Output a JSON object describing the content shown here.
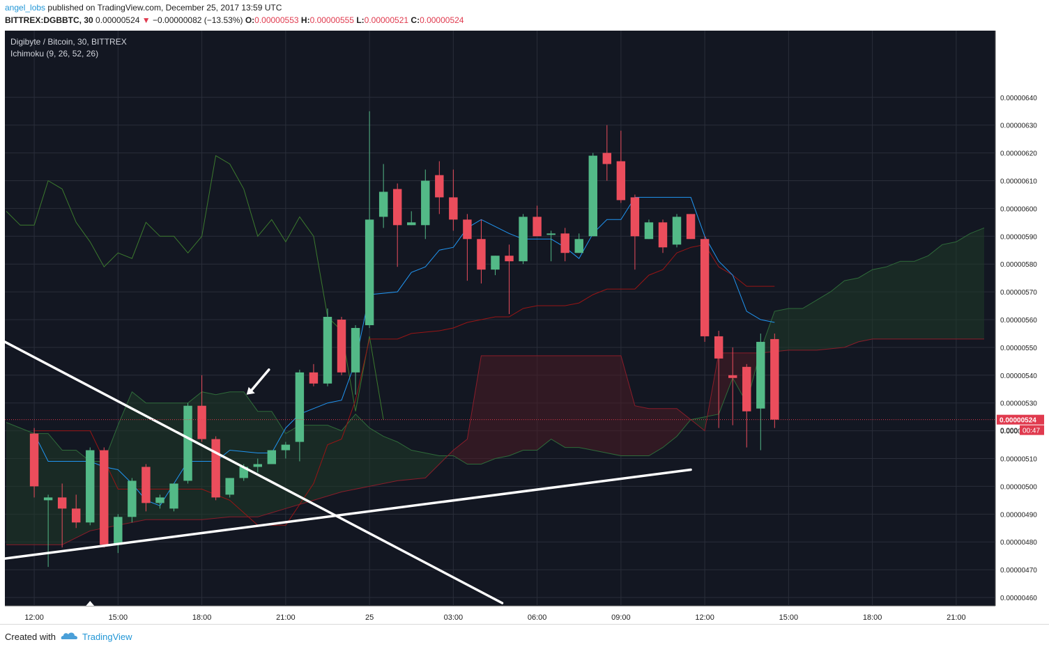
{
  "header": {
    "author": "angel_lobs",
    "published_text": " published on TradingView.com, December 25, 2017 13:59 UTC",
    "symbol": "BITTREX:DGBBTC, 30",
    "last_price": "0.00000524",
    "change_arrow": "▼",
    "change": "−0.00000082 (−13.53%)",
    "o_label": "O:",
    "o_value": "0.00000553",
    "h_label": "H:",
    "h_value": "0.00000555",
    "l_label": "L:",
    "l_value": "0.00000521",
    "c_label": "C:",
    "c_value": "0.00000524"
  },
  "legend": {
    "title": "Digibyte / Bitcoin, 30, BITTREX",
    "indicator": "Ichimoku (9, 26, 52, 26)"
  },
  "footer": {
    "created_with": "Created with",
    "brand": "TradingView"
  },
  "colors": {
    "background": "#131722",
    "grid": "#2a2e3a",
    "up": "#53b987",
    "down": "#eb4d5c",
    "conversion_line": "#2196f3",
    "base_line": "#991515",
    "lagging_span": "#3c7a2e",
    "cloud_bull": "#1f3a28",
    "cloud_bear": "#4a1c24",
    "price_line": "#e03a4e",
    "trendline": "#ffffff",
    "axis_text": "#1c1c1c"
  },
  "chart_data": {
    "type": "candlestick",
    "title": "Digibyte / Bitcoin, 30, BITTREX",
    "indicator": "Ichimoku (9, 26, 52, 26)",
    "y_range": [
      4.57e-06,
      6.64e-06
    ],
    "y_ticks": [
      4.6e-06,
      4.7e-06,
      4.8e-06,
      4.9e-06,
      5e-06,
      5.1e-06,
      5.2e-06,
      5.3e-06,
      5.4e-06,
      5.5e-06,
      5.6e-06,
      5.7e-06,
      5.8e-06,
      5.9e-06,
      6e-06,
      6.1e-06,
      6.2e-06,
      6.3e-06,
      6.4e-06
    ],
    "y_tick_labels": [
      "0.00000460",
      "0.00000470",
      "0.00000480",
      "0.00000490",
      "0.00000500",
      "0.00000510",
      "0.00000520",
      "0.00000530",
      "0.00000540",
      "0.00000550",
      "0.00000560",
      "0.00000570",
      "0.00000580",
      "0.00000590",
      "0.00000600",
      "0.00000610",
      "0.00000620",
      "0.00000630",
      "0.00000640"
    ],
    "x_range": [
      -2.1,
      68.8
    ],
    "x_ticks": [
      {
        "i": 0,
        "label": "12:00"
      },
      {
        "i": 6,
        "label": "15:00"
      },
      {
        "i": 12,
        "label": "18:00"
      },
      {
        "i": 18,
        "label": "21:00"
      },
      {
        "i": 24,
        "label": "25"
      },
      {
        "i": 30,
        "label": "03:00"
      },
      {
        "i": 36,
        "label": "06:00"
      },
      {
        "i": 42,
        "label": "09:00"
      },
      {
        "i": 48,
        "label": "12:00"
      },
      {
        "i": 54,
        "label": "15:00"
      },
      {
        "i": 60,
        "label": "18:00"
      },
      {
        "i": 66,
        "label": "21:00"
      }
    ],
    "current_price": 5.24e-06,
    "current_price_label": "0.00000524",
    "countdown": "00:47",
    "price_axis_cut_label": "0.000",
    "candles": [
      [
        5.19e-06,
        5.21e-06,
        4.96e-06,
        5e-06
      ],
      [
        4.95e-06,
        4.97e-06,
        4.71e-06,
        4.96e-06
      ],
      [
        4.96e-06,
        5.01e-06,
        4.78e-06,
        4.92e-06
      ],
      [
        4.92e-06,
        4.97e-06,
        4.85e-06,
        4.87e-06
      ],
      [
        4.87e-06,
        5.14e-06,
        4.86e-06,
        5.13e-06
      ],
      [
        5.13e-06,
        5.14e-06,
        4.78e-06,
        4.79e-06
      ],
      [
        4.79e-06,
        4.9e-06,
        4.76e-06,
        4.89e-06
      ],
      [
        4.89e-06,
        5.03e-06,
        4.87e-06,
        5.02e-06
      ],
      [
        5.07e-06,
        5.08e-06,
        4.91e-06,
        4.94e-06
      ],
      [
        4.94e-06,
        4.97e-06,
        4.92e-06,
        4.96e-06
      ],
      [
        4.92e-06,
        5.01e-06,
        4.91e-06,
        5.01e-06
      ],
      [
        5.02e-06,
        5.3e-06,
        5.01e-06,
        5.29e-06
      ],
      [
        5.29e-06,
        5.4e-06,
        5.16e-06,
        5.17e-06
      ],
      [
        5.17e-06,
        5.18e-06,
        4.95e-06,
        4.96e-06
      ],
      [
        4.97e-06,
        5.03e-06,
        4.96e-06,
        5.03e-06
      ],
      [
        5.03e-06,
        5.08e-06,
        5.02e-06,
        5.07e-06
      ],
      [
        5.07e-06,
        5.1e-06,
        5.05e-06,
        5.08e-06
      ],
      [
        5.08e-06,
        5.13e-06,
        5.08e-06,
        5.13e-06
      ],
      [
        5.13e-06,
        5.16e-06,
        5.1e-06,
        5.15e-06
      ],
      [
        5.16e-06,
        5.42e-06,
        5.09e-06,
        5.41e-06
      ],
      [
        5.41e-06,
        5.44e-06,
        5.36e-06,
        5.37e-06
      ],
      [
        5.37e-06,
        5.64e-06,
        5.36e-06,
        5.61e-06
      ],
      [
        5.6e-06,
        5.61e-06,
        5.4e-06,
        5.41e-06
      ],
      [
        5.41e-06,
        5.58e-06,
        5.33e-06,
        5.57e-06
      ],
      [
        5.58e-06,
        6.35e-06,
        5.57e-06,
        5.96e-06
      ],
      [
        5.97e-06,
        6.16e-06,
        5.93e-06,
        6.06e-06
      ],
      [
        6.07e-06,
        6.09e-06,
        5.79e-06,
        5.94e-06
      ],
      [
        5.94e-06,
        5.99e-06,
        5.94e-06,
        5.95e-06
      ],
      [
        5.94e-06,
        6.14e-06,
        5.89e-06,
        6.1e-06
      ],
      [
        6.12e-06,
        6.17e-06,
        5.98e-06,
        6.04e-06
      ],
      [
        6.04e-06,
        6.14e-06,
        5.92e-06,
        5.96e-06
      ],
      [
        5.96e-06,
        5.98e-06,
        5.74e-06,
        5.89e-06
      ],
      [
        5.89e-06,
        5.96e-06,
        5.73e-06,
        5.78e-06
      ],
      [
        5.78e-06,
        5.83e-06,
        5.76e-06,
        5.83e-06
      ],
      [
        5.83e-06,
        5.87e-06,
        5.62e-06,
        5.81e-06
      ],
      [
        5.81e-06,
        5.98e-06,
        5.8e-06,
        5.97e-06
      ],
      [
        5.97e-06,
        6.01e-06,
        5.9e-06,
        5.9e-06
      ],
      [
        5.91e-06,
        5.92e-06,
        5.81e-06,
        5.91e-06
      ],
      [
        5.91e-06,
        5.93e-06,
        5.81e-06,
        5.84e-06
      ],
      [
        5.84e-06,
        5.91e-06,
        5.84e-06,
        5.89e-06
      ],
      [
        5.9e-06,
        6.2e-06,
        5.9e-06,
        6.19e-06
      ],
      [
        6.2e-06,
        6.3e-06,
        6.1e-06,
        6.16e-06
      ],
      [
        6.17e-06,
        6.28e-06,
        6.02e-06,
        6.03e-06
      ],
      [
        6.04e-06,
        6.05e-06,
        5.78e-06,
        5.9e-06
      ],
      [
        5.89e-06,
        5.96e-06,
        5.89e-06,
        5.95e-06
      ],
      [
        5.95e-06,
        5.96e-06,
        5.84e-06,
        5.86e-06
      ],
      [
        5.87e-06,
        5.98e-06,
        5.86e-06,
        5.97e-06
      ],
      [
        5.98e-06,
        5.98e-06,
        5.89e-06,
        5.89e-06
      ],
      [
        5.89e-06,
        5.9e-06,
        5.52e-06,
        5.54e-06
      ],
      [
        5.54e-06,
        5.56e-06,
        5.21e-06,
        5.46e-06
      ],
      [
        5.4e-06,
        5.5e-06,
        5.22e-06,
        5.39e-06
      ],
      [
        5.43e-06,
        5.44e-06,
        5.14e-06,
        5.27e-06
      ],
      [
        5.28e-06,
        5.55e-06,
        5.13e-06,
        5.52e-06
      ],
      [
        5.53e-06,
        5.55e-06,
        5.21e-06,
        5.24e-06
      ]
    ],
    "conversion_line": [
      [
        0,
        5.19e-06
      ],
      [
        1,
        5.09e-06
      ],
      [
        4,
        5.09e-06
      ],
      [
        5,
        5.07e-06
      ],
      [
        6,
        5.06e-06
      ],
      [
        7,
        5.01e-06
      ],
      [
        8,
        4.95e-06
      ],
      [
        9,
        4.93e-06
      ],
      [
        11,
        5.09e-06
      ],
      [
        13,
        5.09e-06
      ],
      [
        14,
        5.13e-06
      ],
      [
        16,
        5.12e-06
      ],
      [
        17,
        5.12e-06
      ],
      [
        18,
        5.21e-06
      ],
      [
        19,
        5.26e-06
      ],
      [
        20,
        5.28e-06
      ],
      [
        21,
        5.3e-06
      ],
      [
        22,
        5.31e-06
      ],
      [
        23,
        5.45e-06
      ],
      [
        24,
        5.69e-06
      ],
      [
        26,
        5.7e-06
      ],
      [
        27,
        5.77e-06
      ],
      [
        28,
        5.79e-06
      ],
      [
        29,
        5.85e-06
      ],
      [
        30,
        5.86e-06
      ],
      [
        31,
        5.93e-06
      ],
      [
        32,
        5.96e-06
      ],
      [
        34,
        5.91e-06
      ],
      [
        35,
        5.89e-06
      ],
      [
        37,
        5.89e-06
      ],
      [
        38,
        5.86e-06
      ],
      [
        39,
        5.82e-06
      ],
      [
        40,
        5.91e-06
      ],
      [
        41,
        5.96e-06
      ],
      [
        42,
        5.96e-06
      ],
      [
        43,
        6.04e-06
      ],
      [
        46,
        6.04e-06
      ],
      [
        47,
        6.04e-06
      ],
      [
        48,
        5.9e-06
      ],
      [
        49,
        5.81e-06
      ],
      [
        50,
        5.76e-06
      ],
      [
        51,
        5.63e-06
      ],
      [
        52,
        5.6e-06
      ],
      [
        53,
        5.59e-06
      ]
    ],
    "base_line": [
      [
        0,
        5.2e-06
      ],
      [
        1,
        5.2e-06
      ],
      [
        4,
        5.2e-06
      ],
      [
        6,
        4.99e-06
      ],
      [
        12,
        4.99e-06
      ],
      [
        14,
        4.95e-06
      ],
      [
        16,
        4.86e-06
      ],
      [
        18,
        4.86e-06
      ],
      [
        20,
        5.01e-06
      ],
      [
        21,
        5.15e-06
      ],
      [
        22,
        5.17e-06
      ],
      [
        23,
        5.31e-06
      ],
      [
        24,
        5.53e-06
      ],
      [
        26,
        5.53e-06
      ],
      [
        27,
        5.55e-06
      ],
      [
        29,
        5.56e-06
      ],
      [
        30,
        5.57e-06
      ],
      [
        31,
        5.59e-06
      ],
      [
        33,
        5.61e-06
      ],
      [
        34,
        5.61e-06
      ],
      [
        35,
        5.64e-06
      ],
      [
        36,
        5.65e-06
      ],
      [
        38,
        5.65e-06
      ],
      [
        39,
        5.66e-06
      ],
      [
        40,
        5.69e-06
      ],
      [
        41,
        5.71e-06
      ],
      [
        43,
        5.71e-06
      ],
      [
        44,
        5.76e-06
      ],
      [
        45,
        5.78e-06
      ],
      [
        46,
        5.84e-06
      ],
      [
        47,
        5.86e-06
      ],
      [
        48,
        5.87e-06
      ],
      [
        49,
        5.79e-06
      ],
      [
        50,
        5.76e-06
      ],
      [
        51,
        5.72e-06
      ],
      [
        52,
        5.72e-06
      ],
      [
        53,
        5.72e-06
      ]
    ],
    "lagging_span": [
      [
        -2,
        5.99e-06
      ],
      [
        -1,
        5.94e-06
      ],
      [
        0,
        5.94e-06
      ],
      [
        1,
        6.1e-06
      ],
      [
        2,
        6.07e-06
      ],
      [
        3,
        5.95e-06
      ],
      [
        4,
        5.88e-06
      ],
      [
        5,
        5.79e-06
      ],
      [
        6,
        5.84e-06
      ],
      [
        7,
        5.82e-06
      ],
      [
        8,
        5.95e-06
      ],
      [
        9,
        5.9e-06
      ],
      [
        10,
        5.9e-06
      ],
      [
        11,
        5.84e-06
      ],
      [
        12,
        5.9e-06
      ],
      [
        13,
        6.19e-06
      ],
      [
        14,
        6.16e-06
      ],
      [
        15,
        6.07e-06
      ],
      [
        16,
        5.9e-06
      ],
      [
        17,
        5.96e-06
      ],
      [
        18,
        5.88e-06
      ],
      [
        19,
        5.97e-06
      ],
      [
        20,
        5.9e-06
      ],
      [
        21,
        5.61e-06
      ],
      [
        22,
        5.56e-06
      ],
      [
        23,
        5.27e-06
      ],
      [
        24,
        5.54e-06
      ],
      [
        25,
        5.24e-06
      ]
    ],
    "cloud_span_a": [
      [
        -2,
        5.23e-06
      ],
      [
        -1,
        5.21e-06
      ],
      [
        0,
        5.19e-06
      ],
      [
        1,
        5.19e-06
      ],
      [
        2,
        5.13e-06
      ],
      [
        3,
        5.13e-06
      ],
      [
        4,
        5.09e-06
      ],
      [
        5,
        5.09e-06
      ],
      [
        6,
        5.22e-06
      ],
      [
        7,
        5.34e-06
      ],
      [
        8,
        5.3e-06
      ],
      [
        9,
        5.3e-06
      ],
      [
        10,
        5.3e-06
      ],
      [
        11,
        5.3e-06
      ],
      [
        12,
        5.34e-06
      ],
      [
        13,
        5.33e-06
      ],
      [
        14,
        5.34e-06
      ],
      [
        15,
        5.34e-06
      ],
      [
        16,
        5.27e-06
      ],
      [
        17,
        5.27e-06
      ],
      [
        18,
        5.19e-06
      ],
      [
        19,
        5.22e-06
      ],
      [
        20,
        5.22e-06
      ],
      [
        21,
        5.22e-06
      ],
      [
        22,
        5.2e-06
      ],
      [
        23,
        5.26e-06
      ],
      [
        24,
        5.21e-06
      ],
      [
        25,
        5.18e-06
      ],
      [
        26,
        5.16e-06
      ],
      [
        27,
        5.13e-06
      ],
      [
        28,
        5.12e-06
      ],
      [
        29,
        5.11e-06
      ],
      [
        30,
        5.11e-06
      ],
      [
        31,
        5.08e-06
      ],
      [
        32,
        5.08e-06
      ],
      [
        33,
        5.1e-06
      ],
      [
        34,
        5.11e-06
      ],
      [
        35,
        5.13e-06
      ],
      [
        36,
        5.13e-06
      ],
      [
        37,
        5.17e-06
      ],
      [
        38,
        5.14e-06
      ],
      [
        39,
        5.14e-06
      ],
      [
        40,
        5.13e-06
      ],
      [
        41,
        5.12e-06
      ],
      [
        42,
        5.11e-06
      ],
      [
        43,
        5.11e-06
      ],
      [
        44,
        5.11e-06
      ],
      [
        45,
        5.14e-06
      ],
      [
        46,
        5.18e-06
      ],
      [
        47,
        5.24e-06
      ],
      [
        48,
        5.25e-06
      ],
      [
        49,
        5.26e-06
      ],
      [
        50,
        5.39e-06
      ],
      [
        51,
        5.3e-06
      ],
      [
        52,
        5.49e-06
      ],
      [
        53,
        5.63e-06
      ],
      [
        54,
        5.64e-06
      ],
      [
        55,
        5.64e-06
      ],
      [
        56,
        5.67e-06
      ],
      [
        57,
        5.7e-06
      ],
      [
        58,
        5.74e-06
      ],
      [
        59,
        5.75e-06
      ],
      [
        60,
        5.78e-06
      ],
      [
        61,
        5.79e-06
      ],
      [
        62,
        5.81e-06
      ],
      [
        63,
        5.81e-06
      ],
      [
        64,
        5.83e-06
      ],
      [
        65,
        5.87e-06
      ],
      [
        66,
        5.88e-06
      ],
      [
        67,
        5.91e-06
      ],
      [
        68,
        5.93e-06
      ]
    ],
    "cloud_span_b": [
      [
        -2,
        4.79e-06
      ],
      [
        0,
        4.79e-06
      ],
      [
        2,
        4.79e-06
      ],
      [
        4,
        4.84e-06
      ],
      [
        6,
        4.86e-06
      ],
      [
        8,
        4.88e-06
      ],
      [
        10,
        4.88e-06
      ],
      [
        12,
        4.88e-06
      ],
      [
        14,
        4.89e-06
      ],
      [
        16,
        4.89e-06
      ],
      [
        18,
        4.92e-06
      ],
      [
        20,
        4.95e-06
      ],
      [
        22,
        4.98e-06
      ],
      [
        24,
        5e-06
      ],
      [
        26,
        5.02e-06
      ],
      [
        28,
        5.03e-06
      ],
      [
        29,
        5.08e-06
      ],
      [
        30,
        5.13e-06
      ],
      [
        31,
        5.17e-06
      ],
      [
        32,
        5.47e-06
      ],
      [
        34,
        5.47e-06
      ],
      [
        36,
        5.47e-06
      ],
      [
        38,
        5.47e-06
      ],
      [
        40,
        5.47e-06
      ],
      [
        42,
        5.47e-06
      ],
      [
        43,
        5.29e-06
      ],
      [
        44,
        5.28e-06
      ],
      [
        46,
        5.28e-06
      ],
      [
        47,
        5.24e-06
      ],
      [
        48,
        5.2e-06
      ],
      [
        49,
        5.48e-06
      ],
      [
        50,
        5.48e-06
      ],
      [
        52,
        5.48e-06
      ],
      [
        54,
        5.49e-06
      ],
      [
        56,
        5.49e-06
      ],
      [
        58,
        5.5e-06
      ],
      [
        59,
        5.52e-06
      ],
      [
        60,
        5.53e-06
      ],
      [
        62,
        5.53e-06
      ],
      [
        64,
        5.53e-06
      ],
      [
        66,
        5.53e-06
      ],
      [
        68,
        5.53e-06
      ]
    ],
    "trendlines": [
      {
        "from": [
          -2.1,
          4.74e-06
        ],
        "to": [
          47.0,
          5.06e-06
        ]
      },
      {
        "from": [
          -2.1,
          5.52e-06
        ],
        "to": [
          33.5,
          4.58e-06
        ]
      }
    ],
    "annotation_arrow": {
      "tip": [
        15.2,
        5.33e-06
      ],
      "tail": [
        16.8,
        5.42e-06
      ]
    },
    "time_marker": {
      "i": 4,
      "shape": "triangle-up"
    }
  }
}
